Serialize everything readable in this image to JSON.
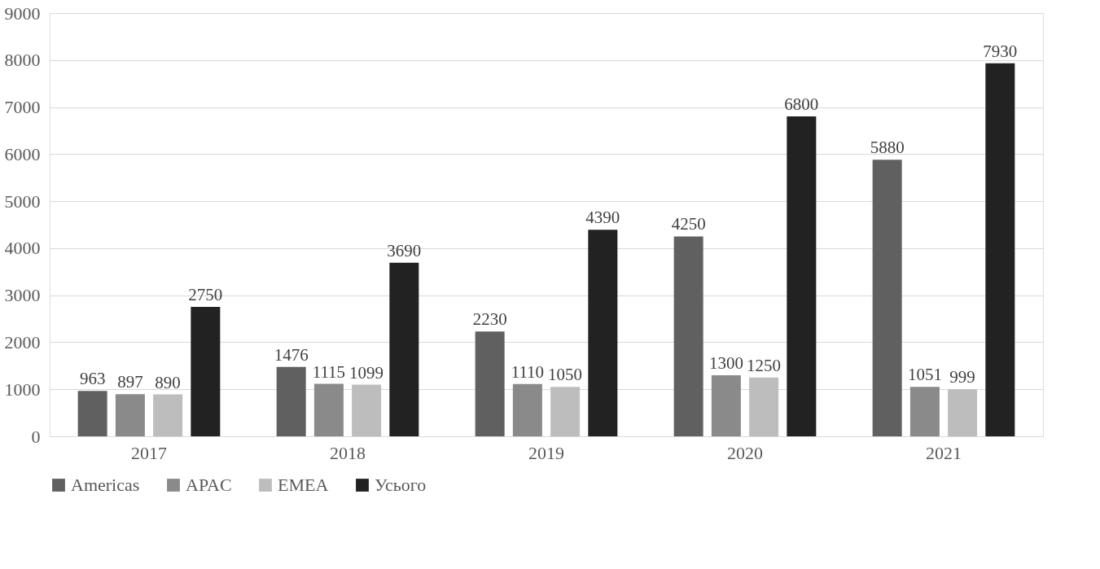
{
  "chart_data": {
    "type": "bar",
    "categories": [
      "2017",
      "2018",
      "2019",
      "2020",
      "2021"
    ],
    "series": [
      {
        "name": "Americas",
        "color": "#606060",
        "values": [
          963,
          1476,
          2230,
          4250,
          5880
        ]
      },
      {
        "name": "APAC",
        "color": "#8a8a8a",
        "values": [
          897,
          1115,
          1110,
          1300,
          1051
        ]
      },
      {
        "name": "EMEA",
        "color": "#bdbdbd",
        "values": [
          890,
          1099,
          1050,
          1250,
          999
        ]
      },
      {
        "name": "Усього",
        "color": "#222222",
        "values": [
          2750,
          3690,
          4390,
          6800,
          7930
        ]
      }
    ],
    "ylim": [
      0,
      9000
    ],
    "yticks": [
      0,
      1000,
      2000,
      3000,
      4000,
      5000,
      6000,
      7000,
      8000,
      9000
    ],
    "grid": "y",
    "legend": "bottom",
    "data_labels": true
  }
}
